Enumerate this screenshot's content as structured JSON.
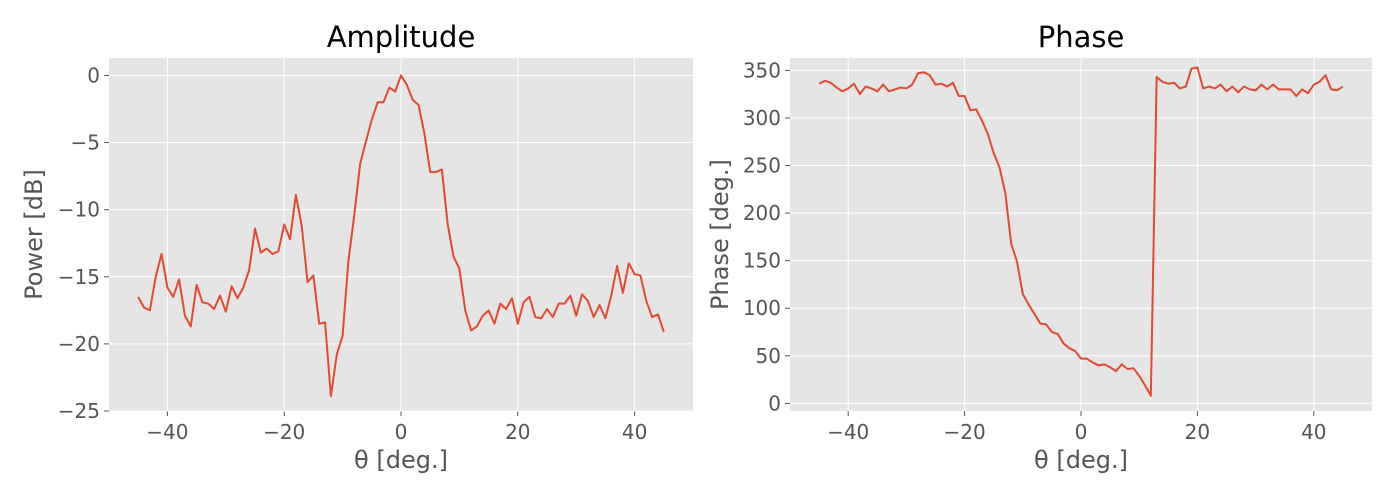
{
  "chart_data": [
    {
      "type": "line",
      "title": "Amplitude",
      "xlabel": "θ [deg.]",
      "ylabel": "Power [dB]",
      "xlim": [
        -50,
        50
      ],
      "ylim": [
        -25,
        1.3
      ],
      "xticks": [
        -40,
        -20,
        0,
        20,
        40
      ],
      "xtick_labels": [
        "−40",
        "−20",
        "0",
        "20",
        "40"
      ],
      "yticks": [
        -25,
        -20,
        -15,
        -10,
        -5,
        0
      ],
      "ytick_labels": [
        "−25",
        "−20",
        "−15",
        "−10",
        "−5",
        "0"
      ],
      "grid": true,
      "color": "#E24A33",
      "series": [
        {
          "x": [
            -45,
            -44,
            -43,
            -42,
            -41,
            -40,
            -39,
            -38,
            -37,
            -36,
            -35,
            -34,
            -33,
            -32,
            -31,
            -30,
            -29,
            -28,
            -27,
            -26,
            -25,
            -24,
            -23,
            -22,
            -21,
            -20,
            -19,
            -18,
            -17,
            -16,
            -15,
            -14,
            -13,
            -12,
            -11,
            -10,
            -9,
            -8,
            -7,
            -6,
            -5,
            -4,
            -3,
            -2,
            -1,
            0,
            1,
            2,
            3,
            4,
            5,
            6,
            7,
            8,
            9,
            10,
            11,
            12,
            13,
            14,
            15,
            16,
            17,
            18,
            19,
            20,
            21,
            22,
            23,
            24,
            25,
            26,
            27,
            28,
            29,
            30,
            31,
            32,
            33,
            34,
            35,
            36,
            37,
            38,
            39,
            40,
            41,
            42,
            43,
            44,
            45
          ],
          "y": [
            -16.5,
            -17.3,
            -17.5,
            -15.0,
            -13.3,
            -15.8,
            -16.5,
            -15.2,
            -17.9,
            -18.7,
            -15.6,
            -16.9,
            -17.0,
            -17.4,
            -16.4,
            -17.6,
            -15.7,
            -16.6,
            -15.8,
            -14.5,
            -11.4,
            -13.2,
            -12.9,
            -13.3,
            -13.1,
            -11.1,
            -12.2,
            -8.9,
            -11.2,
            -15.4,
            -14.9,
            -18.5,
            -18.4,
            -23.9,
            -20.8,
            -19.4,
            -13.8,
            -10.4,
            -6.6,
            -4.9,
            -3.3,
            -2.0,
            -2.0,
            -0.9,
            -1.2,
            0.0,
            -0.7,
            -1.8,
            -2.2,
            -4.3,
            -7.2,
            -7.2,
            -7.0,
            -11.1,
            -13.5,
            -14.4,
            -17.5,
            -19.0,
            -18.7,
            -17.9,
            -17.5,
            -18.5,
            -17.0,
            -17.4,
            -16.6,
            -18.5,
            -16.9,
            -16.5,
            -18.0,
            -18.1,
            -17.4,
            -18.0,
            -17.0,
            -17.0,
            -16.4,
            -17.9,
            -16.3,
            -16.8,
            -18.0,
            -17.1,
            -18.1,
            -16.4,
            -14.2,
            -16.2,
            -14.0,
            -14.8,
            -14.9,
            -16.8,
            -18.0,
            -17.8,
            -19.1
          ]
        }
      ]
    },
    {
      "type": "line",
      "title": "Phase",
      "xlabel": "θ [deg.]",
      "ylabel": "Phase [deg.]",
      "xlim": [
        -50,
        50
      ],
      "ylim": [
        -8,
        363
      ],
      "xticks": [
        -40,
        -20,
        0,
        20,
        40
      ],
      "xtick_labels": [
        "−40",
        "−20",
        "0",
        "20",
        "40"
      ],
      "yticks": [
        0,
        50,
        100,
        150,
        200,
        250,
        300,
        350
      ],
      "ytick_labels": [
        "0",
        "50",
        "100",
        "150",
        "200",
        "250",
        "300",
        "350"
      ],
      "grid": true,
      "color": "#E24A33",
      "series": [
        {
          "x": [
            -45,
            -44,
            -43,
            -42,
            -41,
            -40,
            -39,
            -38,
            -37,
            -36,
            -35,
            -34,
            -33,
            -32,
            -31,
            -30,
            -29,
            -28,
            -27,
            -26,
            -25,
            -24,
            -23,
            -22,
            -21,
            -20,
            -19,
            -18,
            -17,
            -16,
            -15,
            -14,
            -13,
            -12,
            -11,
            -10,
            -9,
            -8,
            -7,
            -6,
            -5,
            -4,
            -3,
            -2,
            -1,
            0,
            1,
            2,
            3,
            4,
            5,
            6,
            7,
            8,
            9,
            10,
            11,
            12,
            13,
            14,
            15,
            16,
            17,
            18,
            19,
            20,
            21,
            22,
            23,
            24,
            25,
            26,
            27,
            28,
            29,
            30,
            31,
            32,
            33,
            34,
            35,
            36,
            37,
            38,
            39,
            40,
            41,
            42,
            43,
            44,
            45
          ],
          "y": [
            336,
            339,
            337,
            332,
            328,
            331,
            336,
            325,
            333,
            331,
            328,
            335,
            328,
            330,
            332,
            331,
            335,
            347,
            348,
            345,
            335,
            336,
            333,
            337,
            323,
            323,
            308,
            309,
            297,
            283,
            263,
            248,
            221,
            168,
            149,
            115,
            104,
            94,
            84,
            83,
            75,
            73,
            63,
            58,
            55,
            47,
            47,
            43,
            40,
            41,
            38,
            34,
            41,
            36,
            37,
            29,
            19,
            8,
            343,
            338,
            336,
            337,
            331,
            333,
            352,
            353,
            331,
            333,
            331,
            335,
            328,
            333,
            327,
            333,
            330,
            329,
            335,
            330,
            335,
            330,
            330,
            330,
            323,
            330,
            326,
            335,
            338,
            345,
            330,
            329,
            333
          ]
        }
      ]
    }
  ]
}
